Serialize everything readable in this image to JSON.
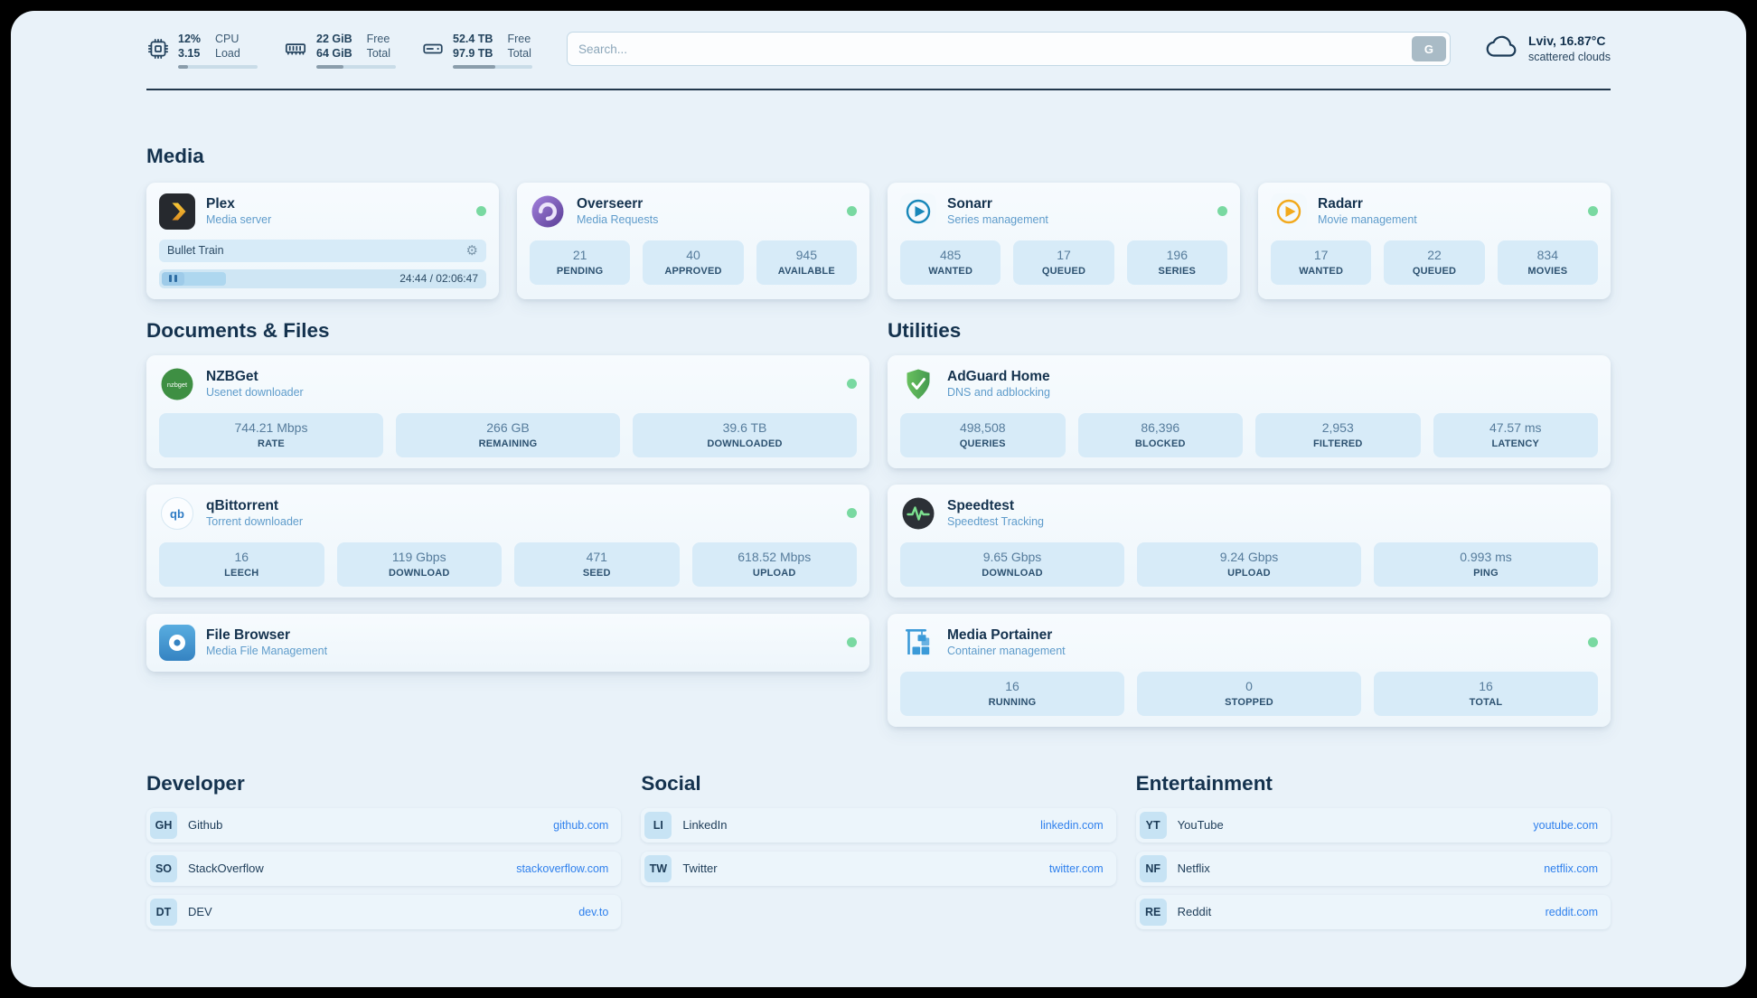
{
  "topbar": {
    "cpu": {
      "value_top": "12%",
      "value_bottom": "3.15",
      "label_top": "CPU",
      "label_bottom": "Load",
      "progress_pct": 12
    },
    "ram": {
      "value_top": "22 GiB",
      "value_bottom": "64 GiB",
      "label_top": "Free",
      "label_bottom": "Total",
      "progress_pct": 34
    },
    "disk": {
      "value_top": "52.4 TB",
      "value_bottom": "97.9 TB",
      "label_top": "Free",
      "label_bottom": "Total",
      "progress_pct": 53
    },
    "search": {
      "placeholder": "Search...",
      "button_label": "G"
    },
    "weather": {
      "location": "Lviv, 16.87°C",
      "condition": "scattered clouds"
    }
  },
  "icons": {
    "gear": "⚙",
    "nzbget_label": "nzbget",
    "qbittorrent_label": "qb"
  },
  "sections": {
    "media": {
      "title": "Media",
      "plex": {
        "name": "Plex",
        "subtitle": "Media server",
        "now_playing": "Bullet Train",
        "time": "24:44 / 02:06:47",
        "progress_pct": 19.5
      },
      "overseerr": {
        "name": "Overseerr",
        "subtitle": "Media Requests",
        "stats": [
          {
            "value": "21",
            "label": "PENDING"
          },
          {
            "value": "40",
            "label": "APPROVED"
          },
          {
            "value": "945",
            "label": "AVAILABLE"
          }
        ]
      },
      "sonarr": {
        "name": "Sonarr",
        "subtitle": "Series management",
        "stats": [
          {
            "value": "485",
            "label": "WANTED"
          },
          {
            "value": "17",
            "label": "QUEUED"
          },
          {
            "value": "196",
            "label": "SERIES"
          }
        ]
      },
      "radarr": {
        "name": "Radarr",
        "subtitle": "Movie management",
        "stats": [
          {
            "value": "17",
            "label": "WANTED"
          },
          {
            "value": "22",
            "label": "QUEUED"
          },
          {
            "value": "834",
            "label": "MOVIES"
          }
        ]
      }
    },
    "documents": {
      "title": "Documents & Files",
      "nzbget": {
        "name": "NZBGet",
        "subtitle": "Usenet downloader",
        "stats": [
          {
            "value": "744.21 Mbps",
            "label": "RATE"
          },
          {
            "value": "266 GB",
            "label": "REMAINING"
          },
          {
            "value": "39.6 TB",
            "label": "DOWNLOADED"
          }
        ]
      },
      "qbittorrent": {
        "name": "qBittorrent",
        "subtitle": "Torrent downloader",
        "stats": [
          {
            "value": "16",
            "label": "LEECH"
          },
          {
            "value": "119 Gbps",
            "label": "DOWNLOAD"
          },
          {
            "value": "471",
            "label": "SEED"
          },
          {
            "value": "618.52 Mbps",
            "label": "UPLOAD"
          }
        ]
      },
      "filebrowser": {
        "name": "File Browser",
        "subtitle": "Media File Management"
      }
    },
    "utilities": {
      "title": "Utilities",
      "adguard": {
        "name": "AdGuard Home",
        "subtitle": "DNS and adblocking",
        "stats": [
          {
            "value": "498,508",
            "label": "QUERIES"
          },
          {
            "value": "86,396",
            "label": "BLOCKED"
          },
          {
            "value": "2,953",
            "label": "FILTERED"
          },
          {
            "value": "47.57 ms",
            "label": "LATENCY"
          }
        ]
      },
      "speedtest": {
        "name": "Speedtest",
        "subtitle": "Speedtest Tracking",
        "stats": [
          {
            "value": "9.65 Gbps",
            "label": "DOWNLOAD"
          },
          {
            "value": "9.24 Gbps",
            "label": "UPLOAD"
          },
          {
            "value": "0.993 ms",
            "label": "PING"
          }
        ]
      },
      "portainer": {
        "name": "Media Portainer",
        "subtitle": "Container management",
        "stats": [
          {
            "value": "16",
            "label": "RUNNING"
          },
          {
            "value": "0",
            "label": "STOPPED"
          },
          {
            "value": "16",
            "label": "TOTAL"
          }
        ]
      }
    },
    "bookmarks": {
      "developer": {
        "title": "Developer",
        "items": [
          {
            "abbr": "GH",
            "name": "Github",
            "link": "github.com"
          },
          {
            "abbr": "SO",
            "name": "StackOverflow",
            "link": "stackoverflow.com"
          },
          {
            "abbr": "DT",
            "name": "DEV",
            "link": "dev.to"
          }
        ]
      },
      "social": {
        "title": "Social",
        "items": [
          {
            "abbr": "LI",
            "name": "LinkedIn",
            "link": "linkedin.com"
          },
          {
            "abbr": "TW",
            "name": "Twitter",
            "link": "twitter.com"
          }
        ]
      },
      "entertainment": {
        "title": "Entertainment",
        "items": [
          {
            "abbr": "YT",
            "name": "YouTube",
            "link": "youtube.com"
          },
          {
            "abbr": "NF",
            "name": "Netflix",
            "link": "netflix.com"
          },
          {
            "abbr": "RE",
            "name": "Reddit",
            "link": "reddit.com"
          }
        ]
      }
    }
  },
  "colors": {
    "page_bg": "#e9f2f9",
    "status_online": "#79d9a1",
    "accent_link": "#2f80ed"
  }
}
